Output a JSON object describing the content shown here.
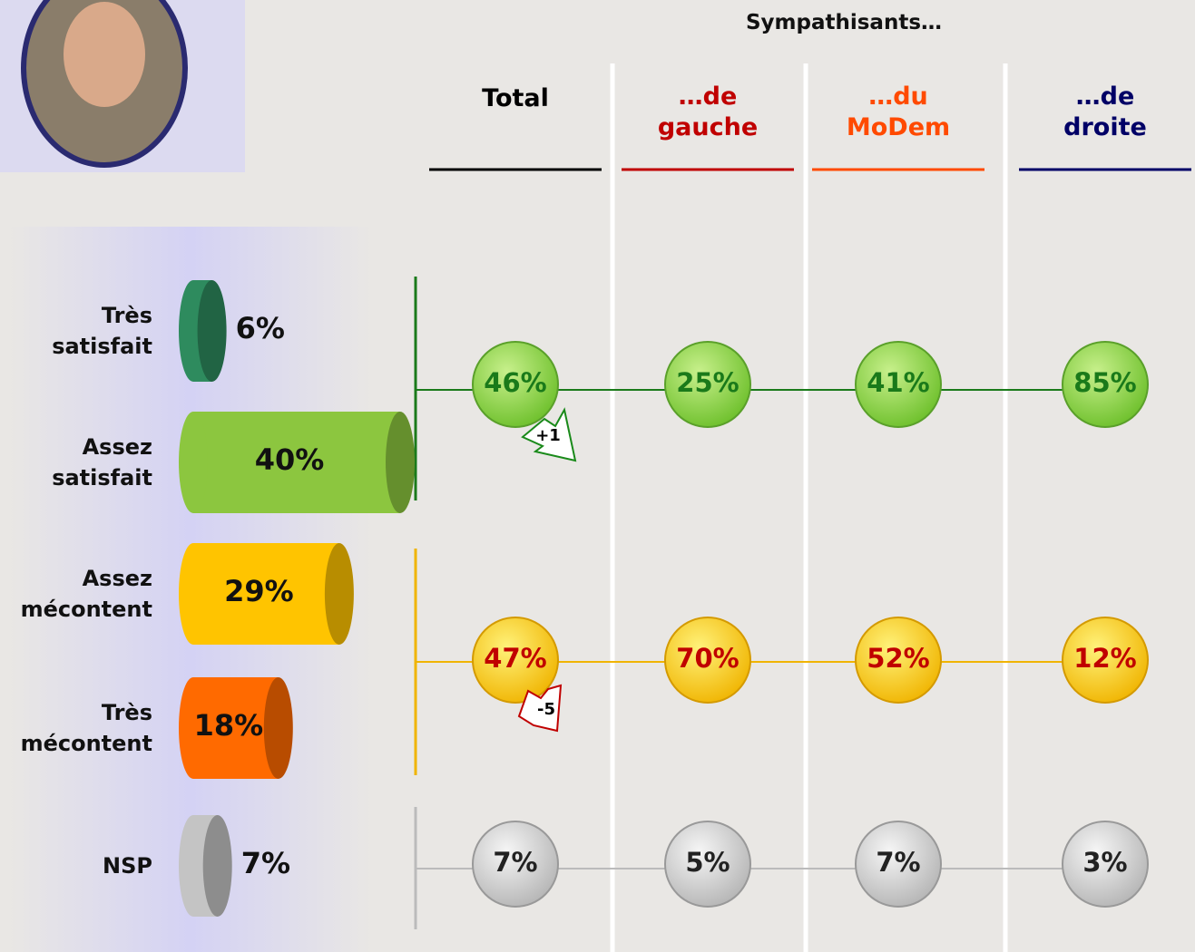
{
  "header": {
    "title": "Sympathisants…"
  },
  "columns": [
    {
      "label": "Total",
      "color": "#000000"
    },
    {
      "label": "…de gauche",
      "color": "#c00000"
    },
    {
      "label": "…du MoDem",
      "color": "#ff4a00"
    },
    {
      "label": "…de droite",
      "color": "#000066"
    }
  ],
  "chart_data": {
    "type": "bar",
    "categories": [
      "Très satisfait",
      "Assez satisfait",
      "Assez mécontent",
      "Très mécontent",
      "NSP"
    ],
    "values": [
      6,
      40,
      29,
      18,
      7
    ],
    "value_labels": [
      "6%",
      "40%",
      "29%",
      "18%",
      "7%"
    ],
    "colors": [
      "#2e8b5e",
      "#8cc63f",
      "#ffc400",
      "#ff6a00",
      "#c4c4c4"
    ]
  },
  "table": {
    "rows": [
      [
        "46%",
        "25%",
        "41%",
        "85%"
      ],
      [
        "47%",
        "70%",
        "52%",
        "12%"
      ],
      [
        "7%",
        "5%",
        "7%",
        "3%"
      ]
    ]
  },
  "changes": [
    "+1",
    "-5"
  ]
}
